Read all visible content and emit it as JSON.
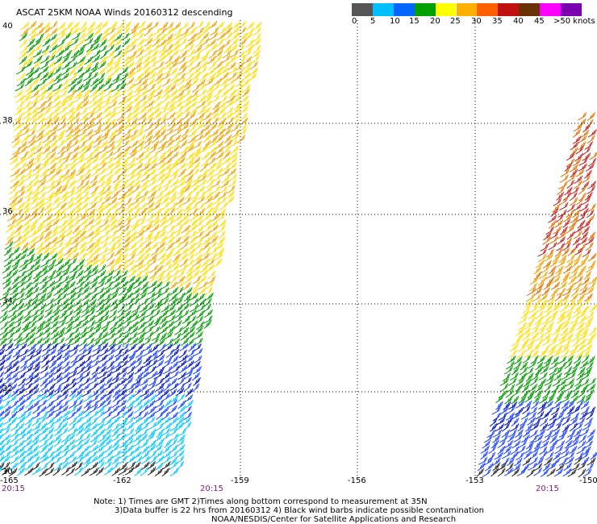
{
  "title": "ASCAT 25KM NOAA Winds 20160312 descending",
  "legend": {
    "labels": [
      "0",
      "5",
      "10",
      "15",
      "20",
      "25",
      "30",
      "35",
      "40",
      "45",
      ">50 knots"
    ],
    "colors": [
      "#555555",
      "#00bfff",
      "#0066ff",
      "#00a000",
      "#ffff00",
      "#ffb000",
      "#ff6000",
      "#c01010",
      "#6a3200",
      "#ff00ff",
      "#7a00b0"
    ]
  },
  "lat_labels": [
    "40",
    "38",
    "36",
    "34",
    "32",
    "30"
  ],
  "lon_labels": [
    "-165",
    "-162",
    "-159",
    "-156",
    "-153",
    "-150"
  ],
  "time_labels": [
    "20:15",
    "20:15",
    "20:15"
  ],
  "notes": {
    "line1": "Note: 1) Times are GMT 2)Times along bottom correspond to measurement at 35N",
    "line2": "3)Data buffer is 22 hrs from 20160312 4) Black wind barbs indicate possible contamination",
    "line3": "NOAA/NESDIS/Center for Satellite Applications and Research"
  },
  "wind_colors": {
    "dark": "#222222",
    "cyan": "#00c8ff",
    "blue": "#1a40ff",
    "navy": "#0010b0",
    "green": "#009900",
    "yellow": "#ffdd00",
    "orange": "#f0a000",
    "darkorange": "#e07000",
    "red": "#c02020"
  }
}
